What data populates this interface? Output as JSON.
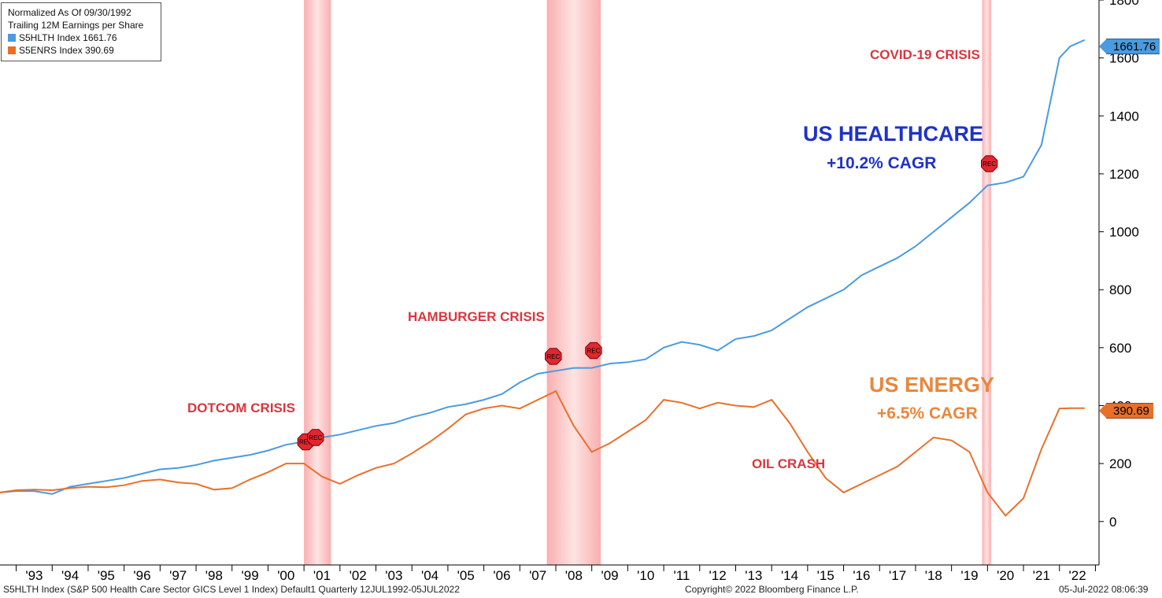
{
  "legend": {
    "line1": "Normalized As Of 09/30/1992",
    "line2": "Trailing 12M Earnings per Share",
    "series": [
      {
        "label": "S5HLTH Index 1661.76",
        "color": "#4a9be0"
      },
      {
        "label": "S5ENRS Index 390.69",
        "color": "#e8702a"
      }
    ]
  },
  "annotations": {
    "covid": "COVID-19 CRISIS",
    "hamburger": "HAMBURGER CRISIS",
    "dotcom": "DOTCOM CRISIS",
    "oil": "OIL CRASH",
    "healthcare_title": "US HEALTHCARE",
    "healthcare_cagr": "+10.2% CAGR",
    "energy_title": "US ENERGY",
    "energy_cagr": "+6.5% CAGR",
    "rec_marker": "REC"
  },
  "last_values": {
    "healthcare": "1661.76",
    "energy": "390.69"
  },
  "footer": {
    "left": "S5HLTH Index (S&P 500 Health Care Sector GICS Level 1 Index) Default1  Quarterly 12JUL1992-05JUL2022",
    "center": "Copyright© 2022 Bloomberg Finance L.P.",
    "right": "05-Jul-2022 08:06:39"
  },
  "chart_data": {
    "type": "line",
    "xlim": [
      1992.55,
      2023.1
    ],
    "ylim": [
      -150,
      1800
    ],
    "yticks": [
      0,
      200,
      400,
      600,
      800,
      1000,
      1200,
      1400,
      1600,
      1800
    ],
    "xtick_labels": [
      "'93",
      "'94",
      "'95",
      "'96",
      "'97",
      "'98",
      "'99",
      "'00",
      "'01",
      "'02",
      "'03",
      "'04",
      "'05",
      "'06",
      "'07",
      "'08",
      "'09",
      "'10",
      "'11",
      "'12",
      "'13",
      "'14",
      "'15",
      "'16",
      "'17",
      "'18",
      "'19",
      "'20",
      "'21",
      "'22"
    ],
    "recessions": [
      [
        2001.0,
        2001.75
      ],
      [
        2007.75,
        2009.25
      ],
      [
        2019.85,
        2020.1
      ]
    ],
    "series": [
      {
        "name": "S5HLTH Index",
        "color": "#4a9be0",
        "x": [
          1992.55,
          1993.0,
          1993.5,
          1994.0,
          1994.5,
          1995.0,
          1995.5,
          1996.0,
          1996.5,
          1997.0,
          1997.5,
          1998.0,
          1998.5,
          1999.0,
          1999.5,
          2000.0,
          2000.5,
          2001.0,
          2001.5,
          2002.0,
          2002.5,
          2003.0,
          2003.5,
          2004.0,
          2004.5,
          2005.0,
          2005.5,
          2006.0,
          2006.5,
          2007.0,
          2007.5,
          2008.0,
          2008.5,
          2009.0,
          2009.5,
          2010.0,
          2010.5,
          2011.0,
          2011.5,
          2012.0,
          2012.5,
          2013.0,
          2013.5,
          2014.0,
          2014.5,
          2015.0,
          2015.5,
          2016.0,
          2016.5,
          2017.0,
          2017.5,
          2018.0,
          2018.5,
          2019.0,
          2019.5,
          2020.0,
          2020.5,
          2021.0,
          2021.5,
          2022.0,
          2022.3,
          2022.7
        ],
        "y": [
          100,
          105,
          105,
          95,
          120,
          130,
          140,
          150,
          165,
          180,
          185,
          195,
          210,
          220,
          230,
          245,
          265,
          275,
          290,
          300,
          315,
          330,
          340,
          360,
          375,
          395,
          405,
          420,
          440,
          480,
          510,
          520,
          530,
          530,
          545,
          550,
          560,
          600,
          620,
          610,
          590,
          630,
          640,
          660,
          700,
          740,
          770,
          800,
          850,
          880,
          910,
          950,
          1000,
          1050,
          1100,
          1160,
          1170,
          1190,
          1300,
          1600,
          1640,
          1662
        ]
      },
      {
        "name": "S5ENRS Index",
        "color": "#e8702a",
        "x": [
          1992.55,
          1993.0,
          1993.5,
          1994.0,
          1994.5,
          1995.0,
          1995.5,
          1996.0,
          1996.5,
          1997.0,
          1997.5,
          1998.0,
          1998.5,
          1999.0,
          1999.5,
          2000.0,
          2000.5,
          2001.0,
          2001.5,
          2002.0,
          2002.5,
          2003.0,
          2003.5,
          2004.0,
          2004.5,
          2005.0,
          2005.5,
          2006.0,
          2006.5,
          2007.0,
          2007.5,
          2008.0,
          2008.5,
          2009.0,
          2009.5,
          2010.0,
          2010.5,
          2011.0,
          2011.5,
          2012.0,
          2012.5,
          2013.0,
          2013.5,
          2014.0,
          2014.5,
          2015.0,
          2015.5,
          2016.0,
          2016.5,
          2017.0,
          2017.5,
          2018.0,
          2018.5,
          2019.0,
          2019.5,
          2020.0,
          2020.5,
          2021.0,
          2021.5,
          2022.0,
          2022.3,
          2022.7
        ],
        "y": [
          100,
          108,
          110,
          108,
          115,
          120,
          118,
          125,
          140,
          145,
          135,
          130,
          110,
          115,
          145,
          170,
          200,
          200,
          155,
          130,
          160,
          185,
          200,
          235,
          275,
          320,
          370,
          390,
          400,
          390,
          420,
          450,
          330,
          240,
          270,
          310,
          350,
          420,
          410,
          390,
          410,
          400,
          395,
          420,
          340,
          240,
          150,
          100,
          130,
          160,
          190,
          240,
          290,
          280,
          240,
          100,
          20,
          80,
          250,
          390,
          391,
          391
        ]
      }
    ]
  }
}
